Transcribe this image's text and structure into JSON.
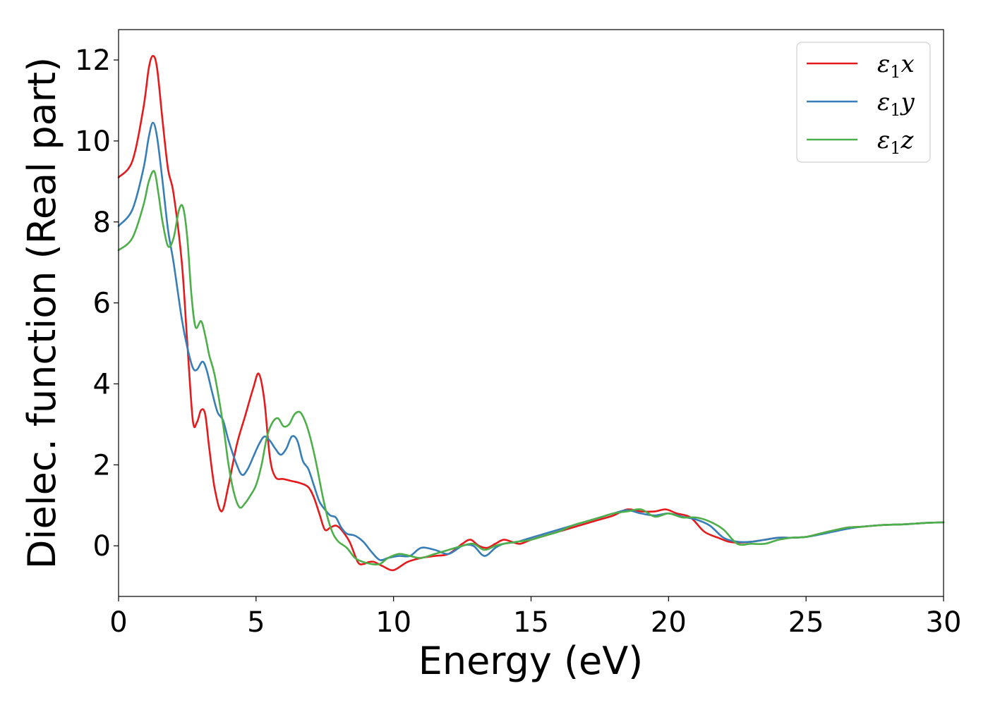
{
  "chart_data": {
    "type": "line",
    "title": "",
    "xlabel": "Energy (eV)",
    "ylabel": "Dielec. function (Real part)",
    "xlim": [
      0,
      30
    ],
    "ylim": [
      -1.25,
      12.75
    ],
    "xticks": [
      0,
      5,
      10,
      15,
      20,
      25,
      30
    ],
    "yticks": [
      0,
      2,
      4,
      6,
      8,
      10,
      12
    ],
    "grid": false,
    "legend_position": "top-right",
    "series": [
      {
        "name": "ε₁x",
        "legend_base": "ε",
        "legend_sub": "1",
        "legend_var": "x",
        "color": "#e41a1c",
        "x": [
          0,
          0.5,
          0.9,
          1.1,
          1.25,
          1.4,
          1.6,
          1.8,
          2.0,
          2.3,
          2.5,
          2.7,
          2.85,
          3.0,
          3.15,
          3.3,
          3.5,
          3.75,
          4.0,
          4.3,
          4.6,
          4.9,
          5.1,
          5.3,
          5.5,
          5.7,
          6.0,
          6.3,
          6.6,
          6.9,
          7.1,
          7.3,
          7.5,
          7.7,
          7.9,
          8.1,
          8.4,
          8.7,
          8.9,
          9.1,
          9.3,
          9.6,
          10.0,
          10.5,
          11.0,
          11.5,
          12.0,
          12.5,
          12.8,
          13.1,
          13.4,
          13.7,
          14.0,
          14.3,
          14.6,
          15.0,
          15.5,
          16.0,
          16.5,
          17.0,
          17.5,
          18.0,
          18.5,
          19.0,
          19.5,
          19.9,
          20.3,
          20.8,
          21.3,
          21.8,
          22.2,
          22.6,
          23.0,
          23.5,
          24.0,
          24.5,
          25.0,
          25.5,
          26.0,
          26.5,
          27.0,
          27.5,
          28.0,
          28.5,
          29.0,
          29.5,
          30.0
        ],
        "y": [
          9.1,
          9.5,
          10.8,
          11.8,
          12.1,
          11.8,
          10.5,
          9.3,
          8.7,
          7.0,
          5.0,
          3.1,
          3.05,
          3.35,
          3.25,
          2.4,
          1.4,
          0.85,
          1.5,
          2.5,
          3.2,
          3.9,
          4.25,
          3.6,
          2.2,
          1.7,
          1.65,
          1.6,
          1.55,
          1.45,
          1.2,
          0.8,
          0.4,
          0.45,
          0.5,
          0.4,
          0.1,
          -0.4,
          -0.45,
          -0.4,
          -0.4,
          -0.5,
          -0.6,
          -0.4,
          -0.3,
          -0.25,
          -0.2,
          0.05,
          0.15,
          0.0,
          -0.05,
          0.05,
          0.15,
          0.1,
          0.05,
          0.15,
          0.25,
          0.35,
          0.45,
          0.55,
          0.65,
          0.75,
          0.9,
          0.85,
          0.85,
          0.9,
          0.8,
          0.7,
          0.35,
          0.2,
          0.1,
          0.08,
          0.1,
          0.15,
          0.2,
          0.2,
          0.22,
          0.3,
          0.38,
          0.45,
          0.47,
          0.5,
          0.52,
          0.53,
          0.55,
          0.57,
          0.58
        ]
      },
      {
        "name": "ε₁y",
        "legend_base": "ε",
        "legend_sub": "1",
        "legend_var": "y",
        "color": "#377eb8",
        "x": [
          0,
          0.5,
          0.9,
          1.1,
          1.25,
          1.4,
          1.6,
          1.8,
          2.0,
          2.3,
          2.5,
          2.7,
          2.85,
          3.05,
          3.2,
          3.4,
          3.6,
          3.8,
          4.0,
          4.3,
          4.5,
          4.7,
          4.9,
          5.1,
          5.3,
          5.5,
          5.7,
          5.9,
          6.1,
          6.3,
          6.5,
          6.7,
          6.9,
          7.1,
          7.3,
          7.5,
          7.7,
          7.9,
          8.1,
          8.3,
          8.6,
          8.9,
          9.2,
          9.5,
          9.8,
          10.2,
          10.6,
          11.0,
          11.5,
          12.0,
          12.5,
          12.9,
          13.3,
          13.7,
          14.0,
          14.5,
          15.0,
          15.5,
          16.0,
          16.5,
          17.0,
          17.5,
          18.0,
          18.5,
          19.0,
          19.5,
          20.0,
          20.5,
          21.0,
          21.5,
          22.0,
          22.5,
          23.0,
          23.5,
          24.0,
          24.5,
          25.0,
          25.5,
          26.0,
          26.5,
          27.0,
          27.5,
          28.0,
          28.5,
          29.0,
          29.5,
          30.0
        ],
        "y": [
          7.9,
          8.3,
          9.3,
          10.1,
          10.45,
          10.1,
          9.0,
          7.8,
          7.0,
          5.6,
          4.9,
          4.4,
          4.35,
          4.55,
          4.35,
          3.8,
          3.3,
          3.1,
          2.6,
          2.0,
          1.75,
          1.9,
          2.2,
          2.5,
          2.7,
          2.6,
          2.4,
          2.25,
          2.4,
          2.7,
          2.6,
          2.1,
          1.9,
          1.5,
          1.1,
          0.9,
          0.75,
          0.7,
          0.45,
          0.3,
          0.25,
          0.1,
          -0.15,
          -0.35,
          -0.3,
          -0.25,
          -0.25,
          -0.05,
          -0.1,
          -0.2,
          0.0,
          0.0,
          -0.25,
          -0.05,
          0.05,
          0.1,
          0.2,
          0.3,
          0.4,
          0.5,
          0.6,
          0.7,
          0.8,
          0.88,
          0.8,
          0.75,
          0.8,
          0.72,
          0.65,
          0.5,
          0.2,
          0.1,
          0.1,
          0.15,
          0.2,
          0.2,
          0.22,
          0.28,
          0.35,
          0.42,
          0.47,
          0.5,
          0.52,
          0.53,
          0.55,
          0.57,
          0.58
        ]
      },
      {
        "name": "ε₁z",
        "legend_base": "ε",
        "legend_sub": "1",
        "legend_var": "z",
        "color": "#4daf4a",
        "x": [
          0,
          0.5,
          0.9,
          1.1,
          1.3,
          1.45,
          1.6,
          1.8,
          2.0,
          2.2,
          2.35,
          2.5,
          2.65,
          2.8,
          3.0,
          3.15,
          3.3,
          3.5,
          3.8,
          4.0,
          4.2,
          4.4,
          4.6,
          4.8,
          5.0,
          5.2,
          5.4,
          5.6,
          5.8,
          6.0,
          6.2,
          6.4,
          6.6,
          6.8,
          7.0,
          7.2,
          7.4,
          7.6,
          7.8,
          8.0,
          8.3,
          8.6,
          8.9,
          9.2,
          9.5,
          9.8,
          10.2,
          10.6,
          11.0,
          11.5,
          12.0,
          12.5,
          12.9,
          13.3,
          13.7,
          14.0,
          14.5,
          15.0,
          15.5,
          16.0,
          16.5,
          17.0,
          17.5,
          18.0,
          18.5,
          19.0,
          19.5,
          20.0,
          20.5,
          21.0,
          21.5,
          22.0,
          22.5,
          23.0,
          23.5,
          24.0,
          24.5,
          25.0,
          25.5,
          26.0,
          26.5,
          27.0,
          27.5,
          28.0,
          28.5,
          29.0,
          29.5,
          30.0
        ],
        "y": [
          7.3,
          7.6,
          8.4,
          9.0,
          9.25,
          8.7,
          8.0,
          7.4,
          7.6,
          8.3,
          8.35,
          7.6,
          6.2,
          5.4,
          5.55,
          5.2,
          4.7,
          4.2,
          3.0,
          2.0,
          1.3,
          0.95,
          1.05,
          1.25,
          1.5,
          2.0,
          2.7,
          3.05,
          3.15,
          2.95,
          3.0,
          3.25,
          3.3,
          3.05,
          2.6,
          2.0,
          1.3,
          0.7,
          0.3,
          0.1,
          -0.05,
          -0.3,
          -0.4,
          -0.45,
          -0.45,
          -0.3,
          -0.2,
          -0.25,
          -0.3,
          -0.2,
          -0.1,
          0.0,
          0.05,
          -0.1,
          0.0,
          0.05,
          0.1,
          0.15,
          0.25,
          0.35,
          0.5,
          0.6,
          0.7,
          0.8,
          0.85,
          0.9,
          0.72,
          0.8,
          0.7,
          0.7,
          0.6,
          0.4,
          0.05,
          0.05,
          0.05,
          0.15,
          0.2,
          0.22,
          0.3,
          0.38,
          0.45,
          0.47,
          0.5,
          0.52,
          0.53,
          0.55,
          0.57,
          0.58
        ]
      }
    ]
  }
}
